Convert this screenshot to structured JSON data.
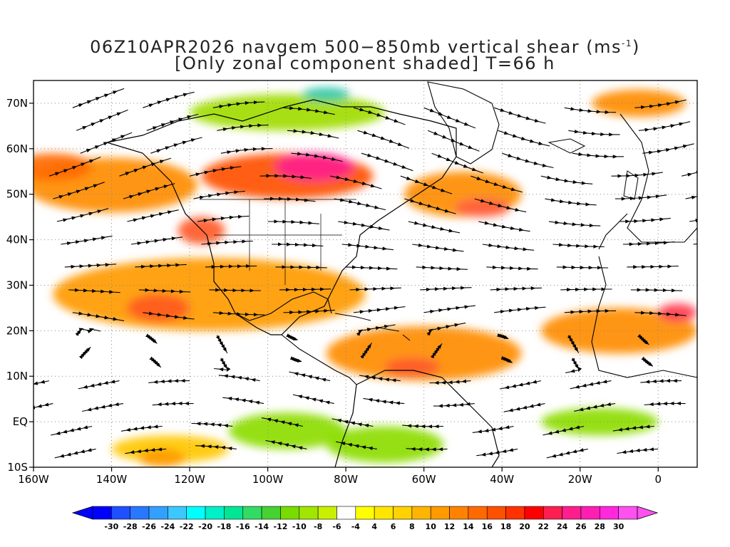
{
  "title": {
    "line1": "06Z10APR2026 navgem 500−850mb vertical shear (ms",
    "unit_superscript": "-1",
    "line1_end": ")",
    "line2": "[Only zonal component shaded] T=66 h"
  },
  "map": {
    "region": "North Atlantic / North America / Eastern Pacific",
    "lon_range": [
      -160,
      10
    ],
    "lat_range": [
      -10,
      75
    ],
    "latitude_labels": [
      "70N",
      "60N",
      "50N",
      "40N",
      "30N",
      "20N",
      "10N",
      "EQ",
      "10S"
    ],
    "latitude_values": [
      70,
      60,
      50,
      40,
      30,
      20,
      10,
      0,
      -10
    ],
    "longitude_labels": [
      "160W",
      "140W",
      "120W",
      "100W",
      "80W",
      "60W",
      "40W",
      "20W",
      "0"
    ],
    "longitude_values": [
      -160,
      -140,
      -120,
      -100,
      -80,
      -60,
      -40,
      -20,
      0
    ],
    "gridlines": "dotted",
    "streamlines": true
  },
  "shading_regions": [
    {
      "desc": "Pacific jet",
      "color": "#ff8c00",
      "lon": -140,
      "lat": 52,
      "rx_deg": 22,
      "ry_deg": 6
    },
    {
      "desc": "Pacific jet",
      "color": "#ff6a00",
      "lon": -155,
      "lat": 56,
      "rx_deg": 10,
      "ry_deg": 3
    },
    {
      "desc": "Canada jet",
      "color": "#ff5000",
      "lon": -95,
      "lat": 54,
      "rx_deg": 22,
      "ry_deg": 5
    },
    {
      "desc": "Canada max",
      "color": "#ff1e8c",
      "lon": -88,
      "lat": 56,
      "rx_deg": 10,
      "ry_deg": 3
    },
    {
      "desc": "West coast",
      "color": "#ff5a28",
      "lon": -117,
      "lat": 42,
      "rx_deg": 6,
      "ry_deg": 3
    },
    {
      "desc": "Atlantic jet",
      "color": "#ff8c00",
      "lon": -50,
      "lat": 50,
      "rx_deg": 15,
      "ry_deg": 5
    },
    {
      "desc": "Atlantic jet",
      "color": "#ff6040",
      "lon": -45,
      "lat": 47,
      "rx_deg": 7,
      "ry_deg": 2
    },
    {
      "desc": "Subtropical jet",
      "color": "#ff9a00",
      "lon": -115,
      "lat": 28,
      "rx_deg": 40,
      "ry_deg": 8
    },
    {
      "desc": "Subtropical max",
      "color": "#ff5a1e",
      "lon": -128,
      "lat": 25,
      "rx_deg": 8,
      "ry_deg": 3
    },
    {
      "desc": "Caribbean",
      "color": "#ff8c00",
      "lon": -60,
      "lat": 15,
      "rx_deg": 25,
      "ry_deg": 6
    },
    {
      "desc": "Caribbean max",
      "color": "#ff5a28",
      "lon": -63,
      "lat": 12,
      "rx_deg": 7,
      "ry_deg": 2
    },
    {
      "desc": "Africa jet",
      "color": "#ff8c00",
      "lon": -10,
      "lat": 20,
      "rx_deg": 20,
      "ry_deg": 5
    },
    {
      "desc": "Africa max",
      "color": "#ff3c50",
      "lon": 5,
      "lat": 24,
      "rx_deg": 5,
      "ry_deg": 2
    },
    {
      "desc": "N Atlantic",
      "color": "#ff8c00",
      "lon": -5,
      "lat": 70,
      "rx_deg": 12,
      "ry_deg": 3
    },
    {
      "desc": "Pacific south",
      "color": "#ffc800",
      "lon": -125,
      "lat": -6,
      "rx_deg": 15,
      "ry_deg": 3
    },
    {
      "desc": "Pacific south",
      "color": "#ff9a00",
      "lon": -127,
      "lat": -8,
      "rx_deg": 6,
      "ry_deg": 2
    },
    {
      "desc": "Greenland",
      "color": "#a0dc00",
      "lon": -95,
      "lat": 68,
      "rx_deg": 25,
      "ry_deg": 4
    },
    {
      "desc": "Greenland max",
      "color": "#32c8aa",
      "lon": -85,
      "lat": 72,
      "rx_deg": 6,
      "ry_deg": 1.5
    },
    {
      "desc": "Eq Pacific",
      "color": "#8cdc00",
      "lon": -95,
      "lat": -2,
      "rx_deg": 15,
      "ry_deg": 4
    },
    {
      "desc": "Eq South America",
      "color": "#8cdc00",
      "lon": -70,
      "lat": -5,
      "rx_deg": 15,
      "ry_deg": 4
    },
    {
      "desc": "Eq Atlantic",
      "color": "#8cdc00",
      "lon": -15,
      "lat": 0,
      "rx_deg": 15,
      "ry_deg": 3
    }
  ],
  "colorbar": {
    "labels": [
      "-30",
      "-28",
      "-26",
      "-24",
      "-22",
      "-20",
      "-18",
      "-16",
      "-14",
      "-12",
      "-10",
      "-8",
      "-6",
      "-4",
      "4",
      "6",
      "8",
      "10",
      "12",
      "14",
      "16",
      "18",
      "20",
      "22",
      "24",
      "26",
      "28",
      "30"
    ],
    "colors": [
      "#0000ff",
      "#1e50ff",
      "#2878ff",
      "#32a0ff",
      "#3cc8ff",
      "#00ffff",
      "#00f0c8",
      "#00e696",
      "#32dc64",
      "#46d232",
      "#78dc00",
      "#a0e600",
      "#c8f000",
      "#ffffff",
      "#ffff00",
      "#ffe600",
      "#ffd200",
      "#ffb400",
      "#ff9a00",
      "#ff8200",
      "#ff6a00",
      "#ff5000",
      "#ff3200",
      "#ff0000",
      "#ff1e50",
      "#ff1e8c",
      "#ff1eb4",
      "#ff28dc",
      "#ff50f0"
    ]
  }
}
